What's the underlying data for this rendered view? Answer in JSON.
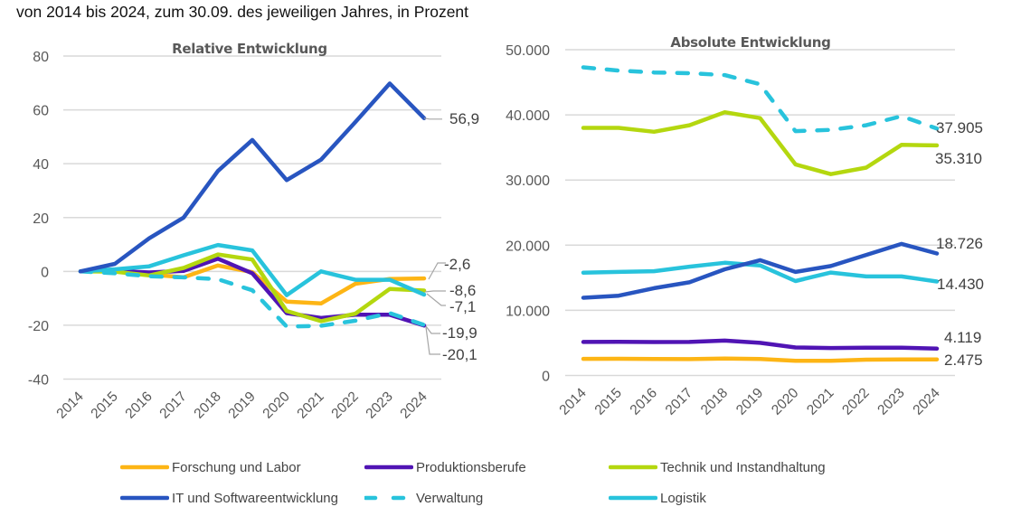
{
  "subtitle": "von 2014 bis 2024, zum 30.09. des jeweiligen Jahres, in Prozent",
  "colors": {
    "forschung": "#FDB515",
    "produktion": "#5014B4",
    "technik": "#B4D70F",
    "it": "#2855C0",
    "verwaltung": "#28C3DC",
    "logistik": "#28C3DC",
    "grid": "#D9D9D9",
    "axis_text": "#595959",
    "title_text": "#595959",
    "label_text": "#404040",
    "leader": "#A6A6A6"
  },
  "legend": [
    {
      "key": "forschung",
      "label": "Forschung und Labor",
      "dashed": false
    },
    {
      "key": "produktion",
      "label": "Produktionsberufe",
      "dashed": false
    },
    {
      "key": "technik",
      "label": "Technik und Instandhaltung",
      "dashed": false
    },
    {
      "key": "it",
      "label": "IT und Softwareentwicklung",
      "dashed": false
    },
    {
      "key": "verwaltung",
      "label": "Verwaltung",
      "dashed": true
    },
    {
      "key": "logistik",
      "label": "Logistik",
      "dashed": false
    }
  ],
  "chart_data": [
    {
      "type": "line",
      "title": "Relative Entwicklung",
      "xlabel": "",
      "ylabel": "",
      "x": [
        "2014",
        "2015",
        "2016",
        "2017",
        "2018",
        "2019",
        "2020",
        "2021",
        "2022",
        "2023",
        "2024"
      ],
      "ylim": [
        -40,
        80
      ],
      "yticks": [
        -40,
        -20,
        0,
        20,
        40,
        60,
        80
      ],
      "ytick_labels": [
        "-40",
        "-20",
        "0",
        "20",
        "40",
        "60",
        "80"
      ],
      "grid": true,
      "series": [
        {
          "key": "forschung",
          "name": "Forschung und Labor",
          "values": [
            0,
            0,
            -1.1,
            -2.2,
            2.2,
            -0.3,
            -11.2,
            -11.9,
            -4.6,
            -2.8,
            -2.6
          ],
          "end_label": "-2,6"
        },
        {
          "key": "produktion",
          "name": "Produktionsberufe",
          "values": [
            0,
            0.2,
            -0.4,
            0.2,
            4.7,
            -0.7,
            -15.5,
            -17.3,
            -16.1,
            -16.1,
            -20.1
          ],
          "end_label": "-20,1"
        },
        {
          "key": "technik",
          "name": "Technik und Instandhaltung",
          "values": [
            0,
            -0.1,
            -1.5,
            1.3,
            6.3,
            4.4,
            -14.7,
            -18.5,
            -15.7,
            -6.5,
            -7.1
          ],
          "end_label": "-7,1"
        },
        {
          "key": "logistik",
          "name": "Logistik",
          "values": [
            0,
            0.8,
            1.9,
            6.0,
            9.8,
            7.8,
            -8.8,
            0,
            -3.1,
            -3.1,
            -8.6
          ],
          "end_label": "-8,6"
        },
        {
          "key": "verwaltung",
          "name": "Verwaltung",
          "dashed": true,
          "values": [
            0,
            -0.7,
            -1.8,
            -2.2,
            -2.9,
            -7.0,
            -20.5,
            -20.2,
            -18.3,
            -15.5,
            -19.9
          ],
          "end_label": "-19,9"
        },
        {
          "key": "it",
          "name": "IT und Softwareentwicklung",
          "values": [
            0,
            2.8,
            12.3,
            20.0,
            37.3,
            48.8,
            33.9,
            41.5,
            55.5,
            69.8,
            56.9
          ],
          "end_label": "56,9"
        }
      ]
    },
    {
      "type": "line",
      "title": "Absolute Entwicklung",
      "xlabel": "",
      "ylabel": "",
      "x": [
        "2014",
        "2015",
        "2016",
        "2017",
        "2018",
        "2019",
        "2020",
        "2021",
        "2022",
        "2023",
        "2024"
      ],
      "ylim": [
        0,
        50000
      ],
      "yticks": [
        0,
        10000,
        20000,
        30000,
        40000,
        50000
      ],
      "ytick_labels": [
        "0",
        "10.000",
        "20.000",
        "30.000",
        "40.000",
        "50.000"
      ],
      "grid": true,
      "series": [
        {
          "key": "forschung",
          "name": "Forschung und Labor",
          "values": [
            2550,
            2560,
            2520,
            2510,
            2600,
            2540,
            2250,
            2250,
            2430,
            2450,
            2475
          ],
          "end_label": "2.475"
        },
        {
          "key": "produktion",
          "name": "Produktionsberufe",
          "values": [
            5150,
            5160,
            5130,
            5150,
            5350,
            5000,
            4300,
            4220,
            4270,
            4270,
            4119
          ],
          "end_label": "4.119"
        },
        {
          "key": "logistik",
          "name": "Logistik",
          "values": [
            15790,
            15900,
            16000,
            16700,
            17300,
            16900,
            14500,
            15800,
            15200,
            15200,
            14430
          ],
          "end_label": "14.430"
        },
        {
          "key": "it",
          "name": "IT und Softwareentwicklung",
          "values": [
            11930,
            12250,
            13400,
            14300,
            16300,
            17700,
            15900,
            16800,
            18500,
            20200,
            18726
          ],
          "end_label": "18.726"
        },
        {
          "key": "technik",
          "name": "Technik und Instandhaltung",
          "values": [
            38000,
            38000,
            37400,
            38400,
            40400,
            39500,
            32400,
            30900,
            31900,
            35400,
            35310
          ],
          "end_label": "35.310"
        },
        {
          "key": "verwaltung",
          "name": "Verwaltung",
          "dashed": true,
          "values": [
            47300,
            46800,
            46500,
            46400,
            46100,
            44700,
            37500,
            37700,
            38400,
            39800,
            37905
          ],
          "end_label": "37.905"
        }
      ]
    }
  ]
}
